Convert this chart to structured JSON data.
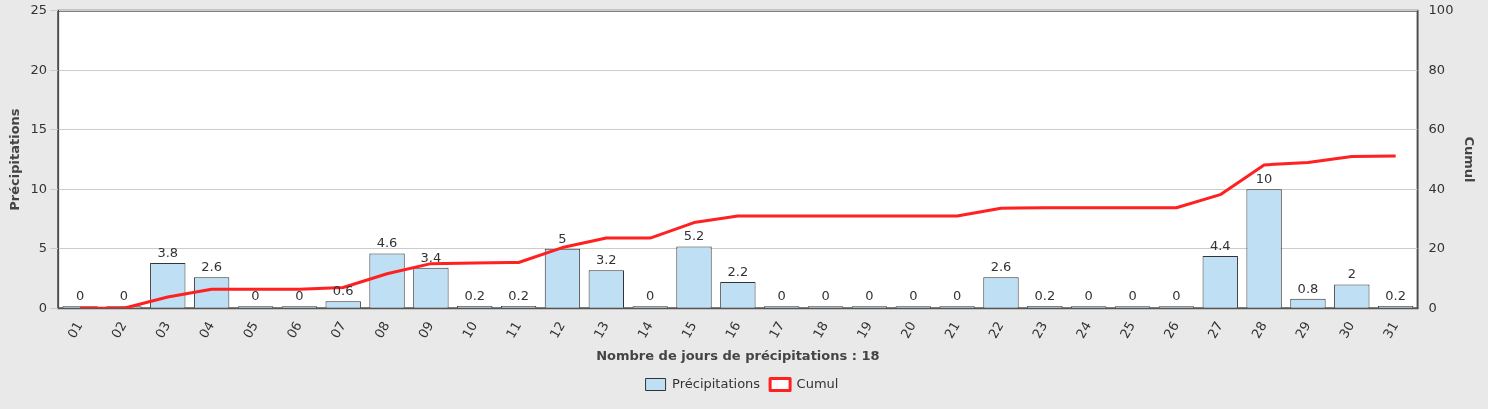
{
  "chart_data": {
    "type": "bar",
    "xlabel": "Nombre de jours de précipitations : 18",
    "ylabel": "Précipitations",
    "y2label": "Cumul",
    "categories": [
      "01",
      "02",
      "03",
      "04",
      "05",
      "06",
      "07",
      "08",
      "09",
      "10",
      "11",
      "12",
      "13",
      "14",
      "15",
      "16",
      "17",
      "18",
      "19",
      "20",
      "21",
      "22",
      "23",
      "24",
      "25",
      "26",
      "27",
      "28",
      "29",
      "30",
      "31"
    ],
    "series": [
      {
        "name": "Précipitations",
        "color": "#bfdff5",
        "values": [
          0,
          0,
          3.8,
          2.6,
          0,
          0,
          0.6,
          4.6,
          3.4,
          0.2,
          0.2,
          5,
          3.2,
          0,
          5.2,
          2.2,
          0,
          0,
          0,
          0,
          0,
          2.6,
          0.2,
          0,
          0,
          0,
          4.4,
          10,
          0.8,
          2,
          0.2
        ],
        "value_labels": [
          "0",
          "0",
          "3.8",
          "2.6",
          "0",
          "0",
          "0.6",
          "4.6",
          "3.4",
          "0.2",
          "0.2",
          "5",
          "3.2",
          "0",
          "5.2",
          "2.2",
          "0",
          "0",
          "0",
          "0",
          "0",
          "2.6",
          "0.2",
          "0",
          "0",
          "0",
          "4.4",
          "10",
          "0.8",
          "2",
          "0.2"
        ]
      },
      {
        "name": "Cumul",
        "type": "line",
        "axis": "y2",
        "color": "#ff2020",
        "values": [
          0,
          0,
          3.8,
          6.4,
          6.4,
          6.4,
          7,
          11.6,
          15,
          15.2,
          15.4,
          20.4,
          23.6,
          23.6,
          28.8,
          31,
          31,
          31,
          31,
          31,
          31,
          33.6,
          33.8,
          33.8,
          33.8,
          33.8,
          38.2,
          48.2,
          49,
          51,
          51.2
        ]
      }
    ],
    "ylim": [
      0,
      25
    ],
    "yticks": [
      0,
      5,
      10,
      15,
      20,
      25
    ],
    "y2lim": [
      0,
      100
    ],
    "y2ticks": [
      0,
      20,
      40,
      60,
      80,
      100
    ],
    "grid": "y",
    "legend": "bottom",
    "marker": "none",
    "line_style": "solid"
  }
}
